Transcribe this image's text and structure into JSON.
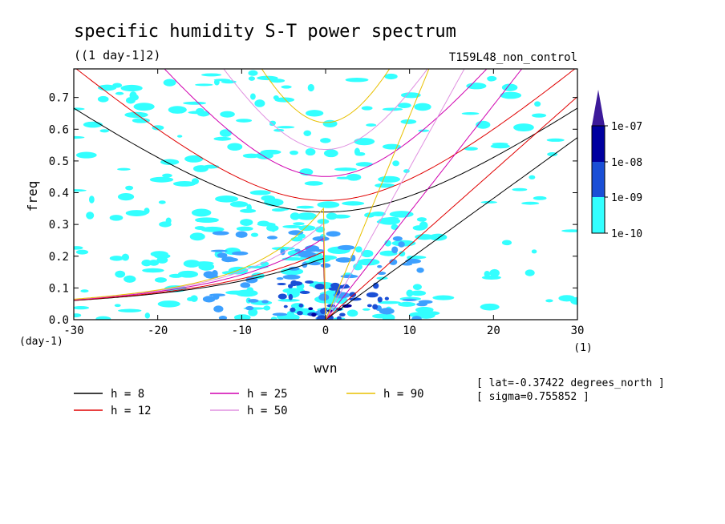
{
  "chart_data": {
    "type": "line",
    "title": "specific humidity S-T power spectrum",
    "units": "((1 day-1]2)",
    "run_label": "T159L48_non_control",
    "xlabel": "wvn",
    "ylabel": "freq",
    "x_unit_label": "(1)",
    "y_unit_label": "(day-1)",
    "xlim": [
      -30,
      30
    ],
    "ylim": [
      0,
      0.79
    ],
    "x_ticks": [
      "-30",
      "-20",
      "-10",
      "0",
      "10",
      "20",
      "30"
    ],
    "x_tick_values": [
      -30,
      -20,
      -10,
      0,
      10,
      20,
      30
    ],
    "y_ticks": [
      "0.0",
      "0.1",
      "0.2",
      "0.3",
      "0.4",
      "0.5",
      "0.6",
      "0.7"
    ],
    "y_tick_values": [
      0,
      0.1,
      0.2,
      0.3,
      0.4,
      0.5,
      0.6,
      0.7
    ],
    "colorbar": {
      "labels": [
        "1e-07",
        "1e-08",
        "1e-09",
        "1e-10"
      ],
      "colors": [
        "#0000a0",
        "#1a4fd6",
        "#3da0ff",
        "#33ffff"
      ],
      "top_color": "#3c1a9a"
    },
    "info_lines": [
      "[ lat=-0.37422 degrees_north ]",
      "[ sigma=0.755852 ]"
    ],
    "series": [
      {
        "name": "h =  8",
        "h": 8,
        "color": "#000000"
      },
      {
        "name": "h = 12",
        "h": 12,
        "color": "#e00000"
      },
      {
        "name": "h = 25",
        "h": 25,
        "color": "#d000b0"
      },
      {
        "name": "h = 50",
        "h": 50,
        "color": "#e090e0"
      },
      {
        "name": "h = 90",
        "h": 90,
        "color": "#e8c000"
      }
    ],
    "grid": false,
    "legend_position": "bottom"
  }
}
